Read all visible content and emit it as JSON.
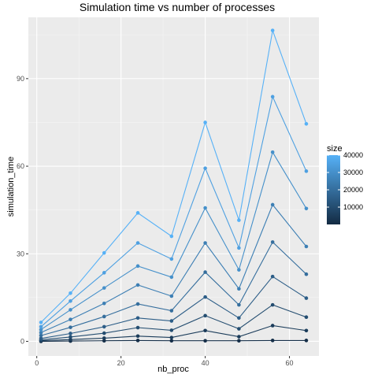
{
  "chart_data": {
    "type": "line",
    "title": "Simulation time vs number of processes",
    "xlabel": "nb_proc",
    "ylabel": "simulation_time",
    "xlim": [
      -2,
      67
    ],
    "ylim": [
      -5,
      111
    ],
    "x_ticks": [
      0,
      20,
      40,
      60
    ],
    "x_tick_labels": [
      "0",
      "20",
      "40",
      "60"
    ],
    "y_ticks": [
      0,
      30,
      60,
      90
    ],
    "y_tick_labels": [
      "0",
      "30",
      "60",
      "90"
    ],
    "grid": true,
    "background": "#ebebeb",
    "legend": {
      "title": "size",
      "position": "right",
      "gradient_low": "#132b43",
      "gradient_high": "#56b1f7",
      "range": [
        0,
        40000
      ],
      "ticks": [
        10000,
        20000,
        30000,
        40000
      ],
      "tick_labels": [
        "10000",
        "20000",
        "30000",
        "40000"
      ]
    },
    "x": [
      1,
      8,
      16,
      24,
      32,
      40,
      48,
      56,
      64
    ],
    "series": [
      {
        "size": 40000,
        "values": [
          6.5,
          16.5,
          30.3,
          44.0,
          36.0,
          75.0,
          41.5,
          106.5,
          74.5
        ]
      },
      {
        "size": 35000,
        "values": [
          5.0,
          13.8,
          23.5,
          33.7,
          28.2,
          59.3,
          32.0,
          83.8,
          58.3
        ]
      },
      {
        "size": 30000,
        "values": [
          4.0,
          10.8,
          18.3,
          25.8,
          22.0,
          45.7,
          24.5,
          64.8,
          45.5
        ]
      },
      {
        "size": 25000,
        "values": [
          3.0,
          7.5,
          13.0,
          19.3,
          15.5,
          33.7,
          18.0,
          46.8,
          32.5
        ]
      },
      {
        "size": 20000,
        "values": [
          2.0,
          4.8,
          8.5,
          12.8,
          10.5,
          23.7,
          12.5,
          34.0,
          23.0
        ]
      },
      {
        "size": 15000,
        "values": [
          1.0,
          2.7,
          5.0,
          8.0,
          7.0,
          15.2,
          8.0,
          22.2,
          14.8
        ]
      },
      {
        "size": 10000,
        "values": [
          0.5,
          1.5,
          2.8,
          4.7,
          3.8,
          8.8,
          4.3,
          12.5,
          8.3
        ]
      },
      {
        "size": 5000,
        "values": [
          0.2,
          0.6,
          1.1,
          1.8,
          1.3,
          3.7,
          1.6,
          5.4,
          3.7
        ]
      },
      {
        "size": 1000,
        "values": [
          0.0,
          0.1,
          0.2,
          0.3,
          0.2,
          0.2,
          0.2,
          0.3,
          0.3
        ]
      }
    ]
  }
}
